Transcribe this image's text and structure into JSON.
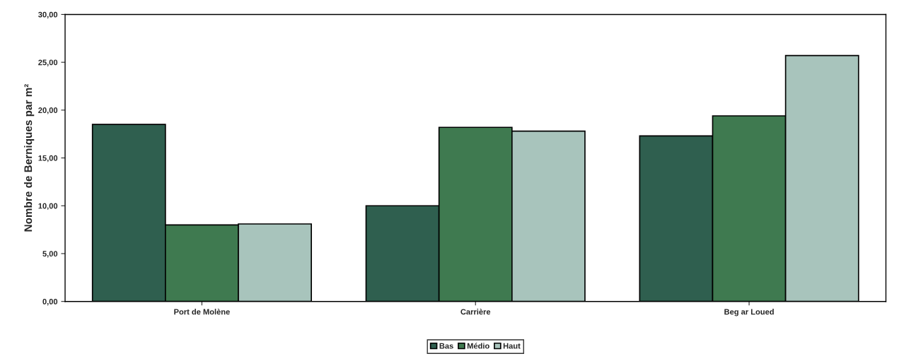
{
  "chart_data": {
    "type": "bar",
    "ylabel": "Nombre de Berniques par m²",
    "categories": [
      "Port de Molène",
      "Carrière",
      "Beg ar Loued"
    ],
    "series": [
      {
        "name": "Bas",
        "color": "#2f5f4f",
        "values": [
          18.5,
          10.0,
          17.3
        ]
      },
      {
        "name": "Médio",
        "color": "#3f7a50",
        "values": [
          8.0,
          18.2,
          19.4
        ]
      },
      {
        "name": "Haut",
        "color": "#a8c4bc",
        "values": [
          8.1,
          17.8,
          25.7
        ]
      }
    ],
    "ylim": [
      0,
      30
    ],
    "yticks": [
      {
        "value": 0,
        "label": "0,00"
      },
      {
        "value": 5,
        "label": "5,00"
      },
      {
        "value": 10,
        "label": "10,00"
      },
      {
        "value": 15,
        "label": "15,00"
      },
      {
        "value": 20,
        "label": "20,00"
      },
      {
        "value": 25,
        "label": "25,00"
      },
      {
        "value": 30,
        "label": "30,00"
      }
    ],
    "grid": false,
    "legend": "bottom"
  }
}
